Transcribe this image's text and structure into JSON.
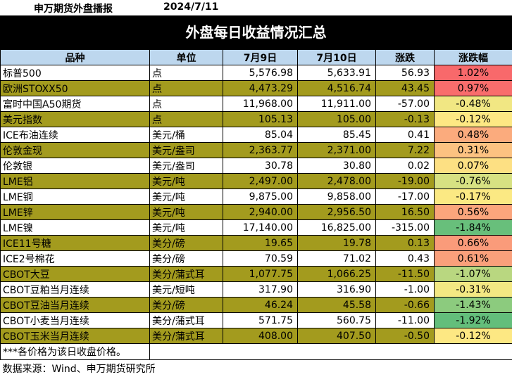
{
  "header": {
    "left": "申万期货外盘播报",
    "date": "2024/7/11"
  },
  "banner": "外盘每日收益情况汇总",
  "columns": [
    "品种",
    "单位",
    "7月9日",
    "7月10日",
    "涨跌",
    "涨跌幅"
  ],
  "colors": {
    "header_bg": "#bdd7ee",
    "olive_row": "#a39b1e",
    "white_row": "#ffffff",
    "red_strong": "#f8696b",
    "red_mid": "#fa8c77",
    "orange": "#fbab7d",
    "peach": "#fcc281",
    "yellow": "#f6e884",
    "lime": "#d7e182",
    "green_light": "#a9d27f",
    "green_mid": "#8ccb7e",
    "green_strong": "#63be7b"
  },
  "rows": [
    {
      "name": "标普500",
      "unit": "点",
      "d1": "5,576.98",
      "d2": "5,633.91",
      "chg": "56.93",
      "pct": "1.02%",
      "style": "white",
      "pct_color": "#f8696b"
    },
    {
      "name": "欧洲STOXX50",
      "unit": "点",
      "d1": "4,473.29",
      "d2": "4,516.74",
      "chg": "43.45",
      "pct": "0.97%",
      "style": "olive",
      "pct_color": "#f96d6c"
    },
    {
      "name": "富时中国A50期货",
      "unit": "点",
      "d1": "11,968.00",
      "d2": "11,911.00",
      "chg": "-57.00",
      "pct": "-0.48%",
      "style": "white",
      "pct_color": "#f1e783"
    },
    {
      "name": "美元指数",
      "unit": "点",
      "d1": "105.13",
      "d2": "105.00",
      "chg": "-0.13",
      "pct": "-0.12%",
      "style": "olive",
      "pct_color": "#fde883"
    },
    {
      "name": "ICE布油连续",
      "unit": "美元/桶",
      "d1": "85.04",
      "d2": "85.45",
      "chg": "0.41",
      "pct": "0.48%",
      "style": "white",
      "pct_color": "#fbab7d"
    },
    {
      "name": "伦敦金现",
      "unit": "美元/盎司",
      "d1": "2,363.77",
      "d2": "2,371.00",
      "chg": "7.22",
      "pct": "0.31%",
      "style": "olive",
      "pct_color": "#fcc281"
    },
    {
      "name": "伦敦银",
      "unit": "美元/盎司",
      "d1": "30.78",
      "d2": "30.80",
      "chg": "0.02",
      "pct": "0.07%",
      "style": "white",
      "pct_color": "#fde083"
    },
    {
      "name": "LME铝",
      "unit": "美元/吨",
      "d1": "2,497.00",
      "d2": "2,478.00",
      "chg": "-19.00",
      "pct": "-0.76%",
      "style": "olive",
      "pct_color": "#d7e182"
    },
    {
      "name": "LME铜",
      "unit": "美元/吨",
      "d1": "9,875.00",
      "d2": "9,858.00",
      "chg": "-17.00",
      "pct": "-0.17%",
      "style": "white",
      "pct_color": "#fbe983"
    },
    {
      "name": "LME锌",
      "unit": "美元/吨",
      "d1": "2,940.00",
      "d2": "2,956.50",
      "chg": "16.50",
      "pct": "0.56%",
      "style": "olive",
      "pct_color": "#fba57c"
    },
    {
      "name": "LME镍",
      "unit": "美元/吨",
      "d1": "17,140.00",
      "d2": "16,825.00",
      "chg": "-315.00",
      "pct": "-1.84%",
      "style": "white",
      "pct_color": "#68bf7b"
    },
    {
      "name": "ICE11号糖",
      "unit": "美分/磅",
      "d1": "19.65",
      "d2": "19.78",
      "chg": "0.13",
      "pct": "0.66%",
      "style": "olive",
      "pct_color": "#fa9b7a"
    },
    {
      "name": "ICE2号棉花",
      "unit": "美分/磅",
      "d1": "70.59",
      "d2": "71.02",
      "chg": "0.43",
      "pct": "0.61%",
      "style": "white",
      "pct_color": "#faa07b"
    },
    {
      "name": "CBOT大豆",
      "unit": "美分/蒲式耳",
      "d1": "1,077.75",
      "d2": "1,066.25",
      "chg": "-11.50",
      "pct": "-1.07%",
      "style": "olive",
      "pct_color": "#b9d780"
    },
    {
      "name": "CBOT豆粕当月连续",
      "unit": "美元/短吨",
      "d1": "317.90",
      "d2": "316.90",
      "chg": "-1.00",
      "pct": "-0.31%",
      "style": "white",
      "pct_color": "#f3e883"
    },
    {
      "name": "CBOT豆油当月连续",
      "unit": "美分/磅",
      "d1": "46.24",
      "d2": "45.58",
      "chg": "-0.66",
      "pct": "-1.43%",
      "style": "olive",
      "pct_color": "#8ccb7e"
    },
    {
      "name": "CBOT小麦当月连续",
      "unit": "美分/蒲式耳",
      "d1": "571.75",
      "d2": "560.75",
      "chg": "-11.00",
      "pct": "-1.92%",
      "style": "white",
      "pct_color": "#63be7b"
    },
    {
      "name": "CBOT玉米当月连续",
      "unit": "美分/蒲式耳",
      "d1": "408.00",
      "d2": "407.50",
      "chg": "-0.50",
      "pct": "-0.12%",
      "style": "olive",
      "pct_color": "#fde883"
    }
  ],
  "note": "***各价格为该日收盘价格。",
  "source": "数据来源：Wind、申万期货研究所"
}
